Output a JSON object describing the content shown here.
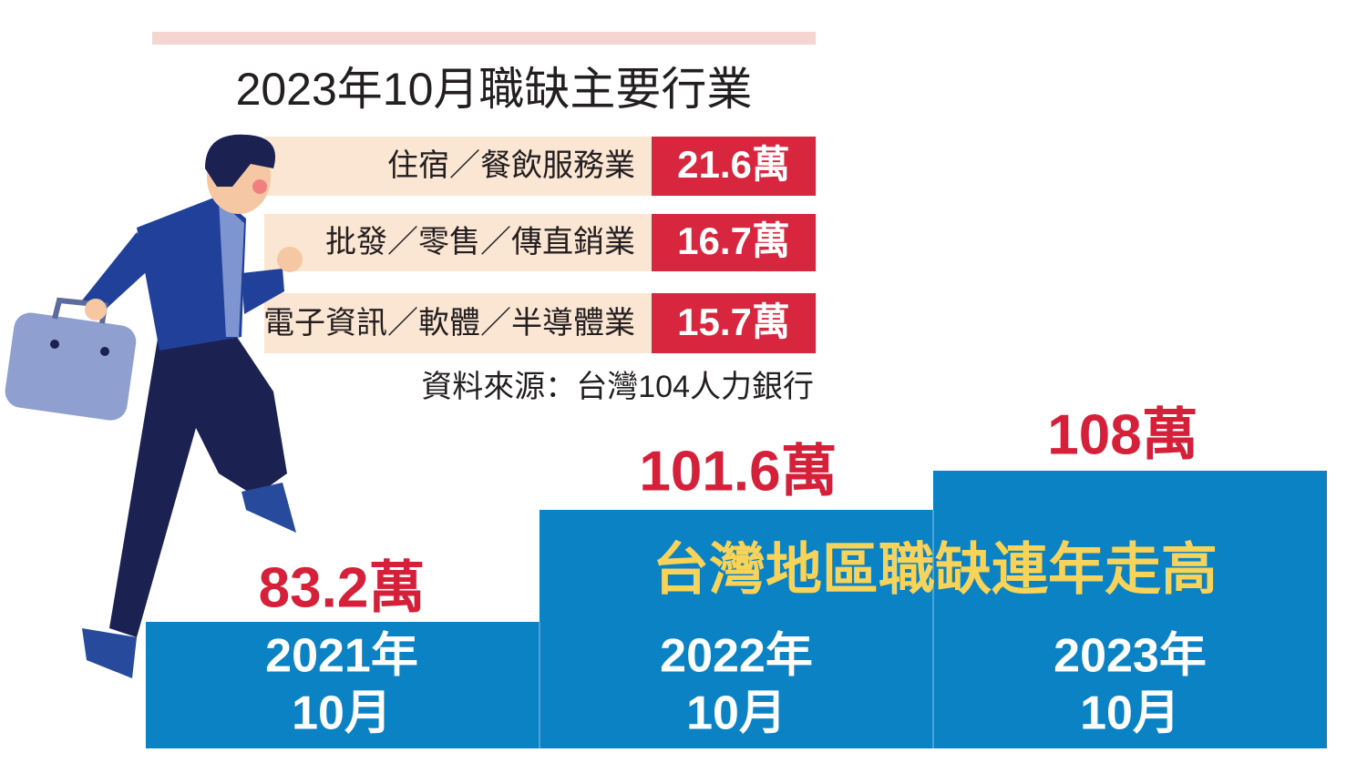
{
  "title": "2023年10月職缺主要行業",
  "industries": [
    {
      "name": "住宿／餐飲服務業",
      "value": "21.6萬"
    },
    {
      "name": "批發／零售／傳直銷業",
      "value": "16.7萬"
    },
    {
      "name": "電子資訊／軟體／半導體業",
      "value": "15.7萬"
    }
  ],
  "source": "資料來源：台灣104人力銀行",
  "headline": "台灣地區職缺連年走高",
  "steps": [
    {
      "year": "2021年",
      "month": "10月",
      "value": "83.2萬"
    },
    {
      "year": "2022年",
      "month": "10月",
      "value": "101.6萬"
    },
    {
      "year": "2023年",
      "month": "10月",
      "value": "108萬"
    }
  ]
}
